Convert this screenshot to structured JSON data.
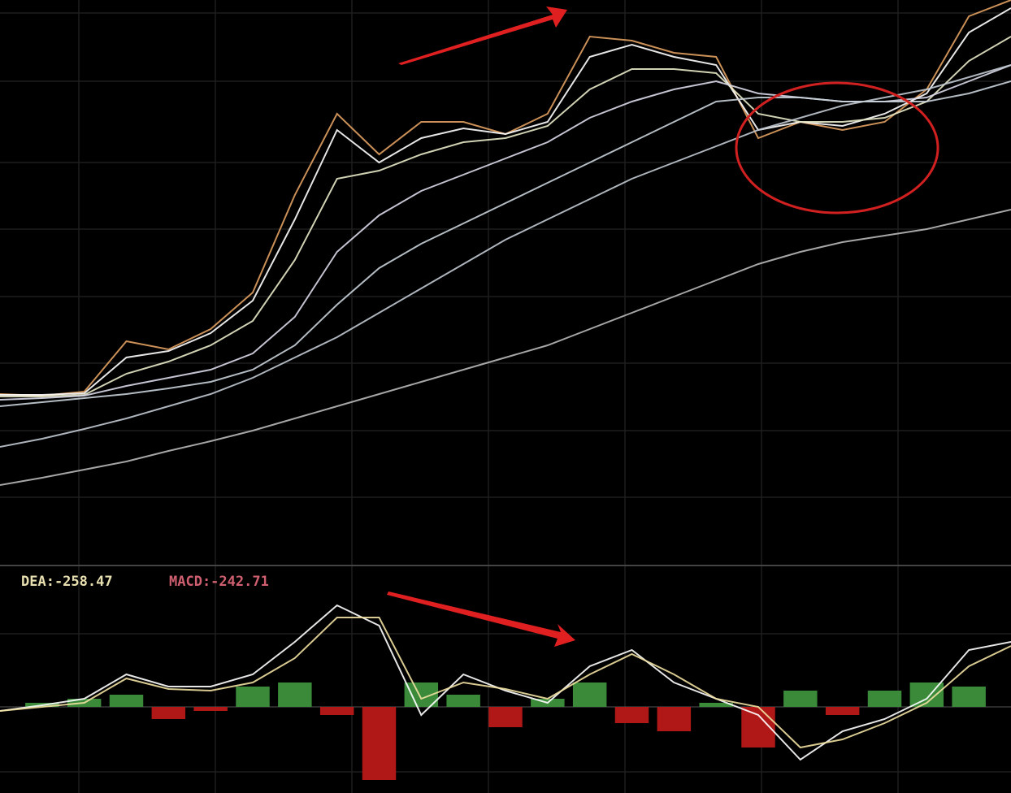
{
  "chart_data": [
    {
      "type": "line",
      "categories": [
        null,
        null,
        null,
        null,
        null,
        null,
        null,
        null,
        null,
        null,
        null,
        null,
        null,
        null,
        null,
        null,
        null,
        null,
        null,
        null,
        null,
        null,
        null,
        null,
        null
      ],
      "ylim": [
        0,
        690
      ],
      "series": [
        {
          "color": "#e0a060",
          "values": [
            205,
            203,
            208,
            270,
            260,
            285,
            330,
            450,
            550,
            500,
            540,
            540,
            525,
            550,
            645,
            640,
            625,
            620,
            520,
            540,
            530,
            540,
            580,
            670,
            690
          ]
        },
        {
          "color": "#ffffff",
          "values": [
            204,
            204,
            206,
            250,
            258,
            280,
            320,
            420,
            530,
            490,
            520,
            532,
            525,
            540,
            620,
            635,
            620,
            610,
            530,
            540,
            535,
            550,
            575,
            650,
            680
          ]
        },
        {
          "color": "#e8e8c8",
          "values": [
            202,
            202,
            204,
            230,
            245,
            265,
            295,
            370,
            470,
            480,
            500,
            515,
            520,
            535,
            580,
            605,
            605,
            600,
            550,
            540,
            540,
            545,
            565,
            615,
            645
          ]
        },
        {
          "color": "#d8d8e8",
          "values": [
            198,
            200,
            203,
            215,
            225,
            235,
            255,
            300,
            380,
            425,
            455,
            475,
            495,
            515,
            545,
            565,
            580,
            590,
            575,
            570,
            565,
            565,
            570,
            590,
            610
          ]
        },
        {
          "color": "#c8d0d8",
          "values": [
            190,
            195,
            200,
            205,
            212,
            220,
            235,
            265,
            315,
            360,
            390,
            415,
            440,
            465,
            490,
            515,
            540,
            565,
            570,
            570,
            565,
            565,
            565,
            575,
            590
          ]
        },
        {
          "color": "#c0c8d0",
          "values": [
            140,
            150,
            162,
            175,
            190,
            205,
            225,
            250,
            275,
            305,
            335,
            365,
            395,
            420,
            445,
            470,
            490,
            510,
            530,
            545,
            560,
            570,
            580,
            595,
            610
          ]
        },
        {
          "color": "#b8b8b8",
          "values": [
            93,
            102,
            112,
            122,
            135,
            147,
            160,
            175,
            190,
            205,
            220,
            235,
            250,
            265,
            285,
            305,
            325,
            345,
            365,
            380,
            392,
            400,
            408,
            420,
            432
          ]
        }
      ]
    },
    {
      "type": "macd",
      "dea_label": "DEA:-258.47",
      "macd_label": "MACD:-242.71",
      "categories": [
        null,
        null,
        null,
        null,
        null,
        null,
        null,
        null,
        null,
        null,
        null,
        null,
        null,
        null,
        null,
        null,
        null,
        null,
        null,
        null,
        null,
        null,
        null,
        null,
        null
      ],
      "ylim": [
        -110,
        140
      ],
      "up_color": "#3a8a3a",
      "down_color": "#b01818",
      "histogram": [
        0,
        5,
        10,
        15,
        -15,
        -5,
        25,
        30,
        -10,
        -90,
        30,
        15,
        -25,
        10,
        30,
        -20,
        -30,
        5,
        -50,
        20,
        -10,
        20,
        30,
        25,
        0
      ],
      "series": [
        {
          "color": "#ffffff",
          "values": [
            -5,
            2,
            10,
            40,
            25,
            25,
            40,
            80,
            125,
            100,
            -10,
            40,
            20,
            5,
            50,
            70,
            30,
            10,
            -10,
            -65,
            -30,
            -15,
            10,
            70,
            80
          ]
        },
        {
          "color": "#f0e0a0",
          "values": [
            -5,
            0,
            5,
            35,
            22,
            20,
            30,
            60,
            110,
            110,
            10,
            30,
            22,
            10,
            40,
            65,
            40,
            10,
            0,
            -50,
            -40,
            -20,
            5,
            50,
            75
          ]
        }
      ]
    }
  ]
}
